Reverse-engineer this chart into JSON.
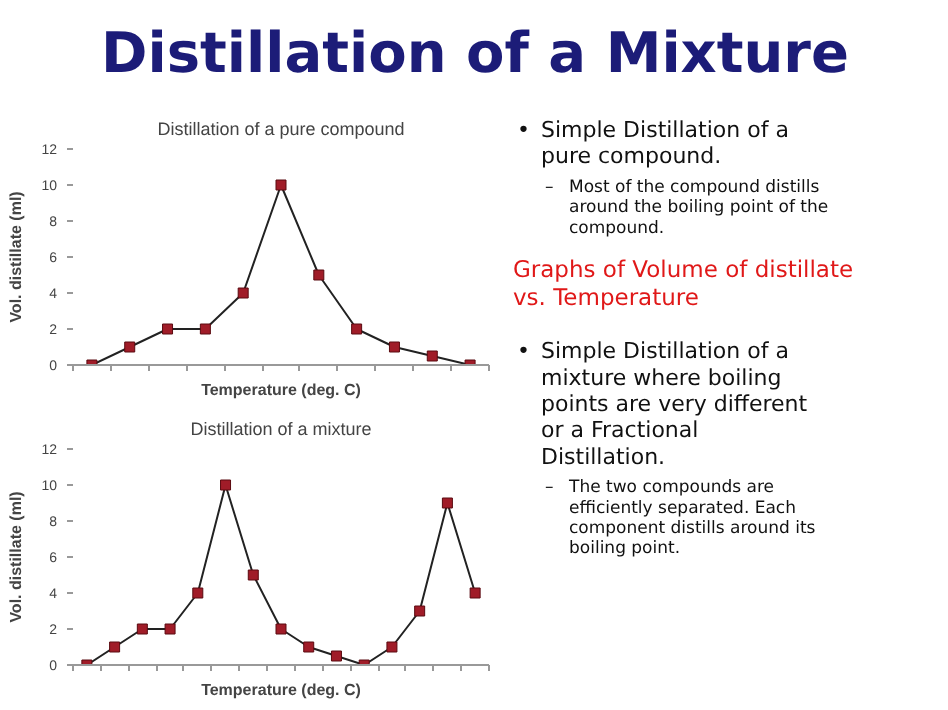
{
  "chart_data": [
    {
      "type": "line",
      "title": "Distillation of a pure compound",
      "xlabel": "Temperature (deg. C)",
      "ylabel": "Vol. distillate (ml)",
      "categories": [
        null,
        null,
        null,
        null,
        null,
        null,
        null,
        null,
        null,
        null,
        null
      ],
      "series": [
        {
          "color": "#a01c28",
          "values": [
            0,
            1,
            2,
            2,
            4,
            10,
            5,
            2,
            1,
            0.5,
            0
          ]
        }
      ],
      "ylim": [
        0,
        12
      ],
      "yticks": [
        0,
        2,
        4,
        6,
        8,
        10,
        12
      ],
      "marker": "square",
      "grid": false,
      "tick_labels": "y"
    },
    {
      "type": "line",
      "title": "Distillation of a mixture",
      "xlabel": "Temperature (deg. C)",
      "ylabel": "Vol. distillate (ml)",
      "categories": [
        null,
        null,
        null,
        null,
        null,
        null,
        null,
        null,
        null,
        null,
        null,
        null,
        null,
        null,
        null
      ],
      "series": [
        {
          "color": "#a01c28",
          "values": [
            0,
            1,
            2,
            2,
            4,
            10,
            5,
            2,
            1,
            0.5,
            0,
            1,
            3,
            9,
            4
          ]
        }
      ],
      "ylim": [
        0,
        12
      ],
      "yticks": [
        0,
        2,
        4,
        6,
        8,
        10,
        12
      ],
      "marker": "square",
      "grid": false,
      "tick_labels": "y"
    },
    {
      "type": "other",
      "title": "Distillation of a Mixture",
      "subtitle": "Graphs of Volume of distillate vs. Temperature",
      "annotations": [
        "• Simple Distillation of a pure compound.",
        "– Most of the compound distills around the boiling point of the compound.",
        "• Simple Distillation of a mixture where boiling points are very different or a Fractional Distillation.",
        "– The two compounds are efficiently separated. Each component distills around its boiling point."
      ]
    }
  ]
}
